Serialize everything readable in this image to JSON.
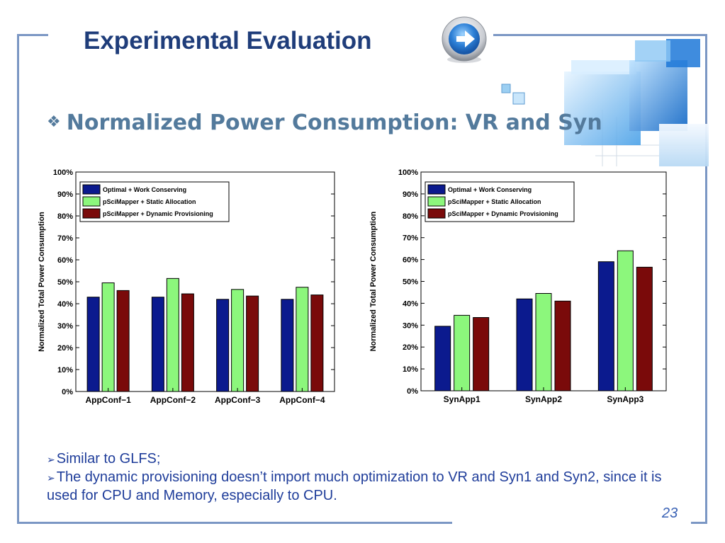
{
  "slide": {
    "title": "Experimental Evaluation",
    "subtitle_bullet": "❖",
    "subtitle": "Normalized Power Consumption: VR and Syn",
    "bullets": [
      "Similar to GLFS;",
      "The dynamic provisioning doesn’t import much optimization to VR and Syn1 and Syn2, since it is used for CPU and Memory, especially to CPU."
    ],
    "bullet_marker": "➢",
    "page_number": "23"
  },
  "colors": {
    "frame": "#7b97c4",
    "title": "#1f3d7a",
    "subtitle": "#537a9c",
    "body_text": "#1f3d9a",
    "series": [
      "#0b1a8e",
      "#8cf77c",
      "#7a0a0a"
    ]
  },
  "icons": {
    "arrow_button": "right-arrow-icon",
    "subtitle_bullet": "diamond-bullet-icon"
  },
  "chart_data": [
    {
      "type": "bar",
      "ylabel": "Normalized Total Power Consumption",
      "xlabel": "",
      "ylim": [
        0,
        100
      ],
      "yticks": [
        "0%",
        "10%",
        "20%",
        "30%",
        "40%",
        "50%",
        "60%",
        "70%",
        "80%",
        "90%",
        "100%"
      ],
      "categories": [
        "AppConf−1",
        "AppConf−2",
        "AppConf−3",
        "AppConf−4"
      ],
      "legend_position": "top-left",
      "grid": false,
      "series": [
        {
          "name": "Optimal + Work Conserving",
          "values": [
            43,
            43,
            42,
            42
          ]
        },
        {
          "name": "pSciMapper + Static Allocation",
          "values": [
            49.5,
            51.5,
            46.5,
            47.5
          ]
        },
        {
          "name": "pSciMapper + Dynamic Provisioning",
          "values": [
            46,
            44.5,
            43.5,
            44
          ]
        }
      ]
    },
    {
      "type": "bar",
      "ylabel": "Normalized Total Power Consumption",
      "xlabel": "",
      "ylim": [
        0,
        100
      ],
      "yticks": [
        "0%",
        "10%",
        "20%",
        "30%",
        "40%",
        "50%",
        "60%",
        "70%",
        "80%",
        "90%",
        "100%"
      ],
      "categories": [
        "SynApp1",
        "SynApp2",
        "SynApp3"
      ],
      "legend_position": "top-left",
      "grid": false,
      "series": [
        {
          "name": "Optimal + Work Conserving",
          "values": [
            29.5,
            42,
            59
          ]
        },
        {
          "name": "pSciMapper + Static Allocation",
          "values": [
            34.5,
            44.5,
            64
          ]
        },
        {
          "name": "pSciMapper + Dynamic Provisioning",
          "values": [
            33.5,
            41,
            56.5
          ]
        }
      ]
    }
  ]
}
